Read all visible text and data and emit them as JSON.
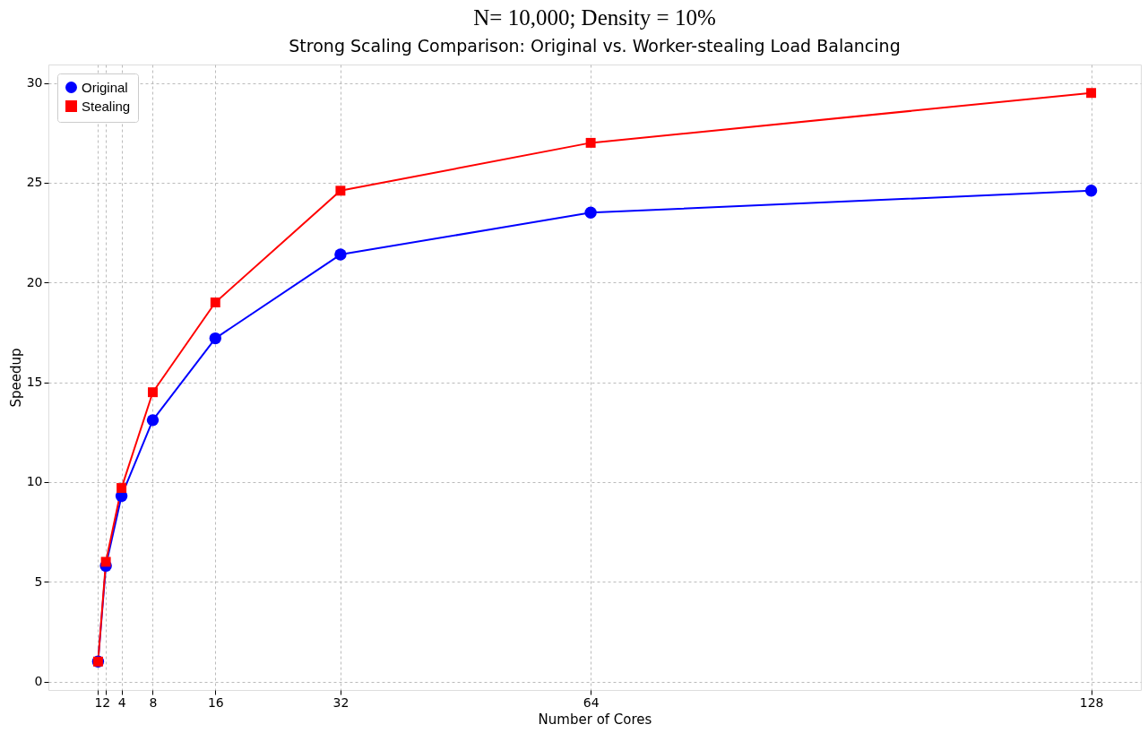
{
  "chart_data": {
    "type": "line",
    "title": "N= 10,000; Density = 10%",
    "subtitle": "Strong Scaling Comparison: Original vs. Worker-stealing Load Balancing",
    "xlabel": "Number of Cores",
    "ylabel": "Speedup",
    "x": [
      1,
      2,
      4,
      8,
      16,
      32,
      64,
      128
    ],
    "series": [
      {
        "name": "Original",
        "color": "#0000ff",
        "marker": "circle",
        "values": [
          1,
          5.8,
          9.3,
          13.1,
          17.2,
          21.4,
          23.5,
          24.6
        ]
      },
      {
        "name": "Stealing",
        "color": "#ff0000",
        "marker": "square",
        "values": [
          1,
          6.0,
          9.7,
          14.5,
          19.0,
          24.6,
          27.0,
          29.5
        ]
      }
    ],
    "xlim": [
      -5.35,
      134.35
    ],
    "xticks": [
      1,
      2,
      4,
      8,
      16,
      32,
      64,
      128
    ],
    "ylim": [
      -0.425,
      30.925
    ],
    "yticks": [
      0,
      5,
      10,
      15,
      20,
      25,
      30
    ],
    "grid": true,
    "legend": "top left",
    "line_style": "solid"
  }
}
